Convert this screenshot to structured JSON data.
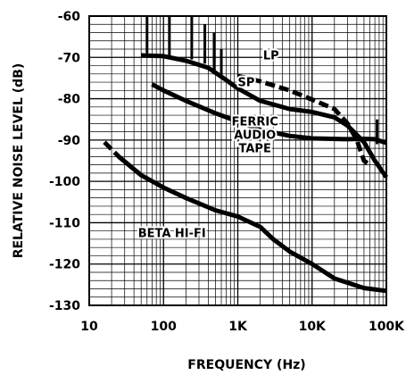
{
  "chart_data": {
    "type": "line",
    "xlabel": "FREQUENCY (Hz)",
    "ylabel": "RELATIVE NOISE LEVEL (dB)",
    "xscale": "log",
    "xlim": [
      10,
      100000
    ],
    "ylim": [
      -130,
      -60
    ],
    "grid": true,
    "x_ticks": [
      {
        "value": 10,
        "label": "10"
      },
      {
        "value": 100,
        "label": "100"
      },
      {
        "value": 1000,
        "label": "1K"
      },
      {
        "value": 10000,
        "label": "10K"
      },
      {
        "value": 100000,
        "label": "100K"
      }
    ],
    "y_ticks": [
      {
        "value": -60,
        "label": "-60"
      },
      {
        "value": -70,
        "label": "-70"
      },
      {
        "value": -80,
        "label": "-80"
      },
      {
        "value": -90,
        "label": "-90"
      },
      {
        "value": -100,
        "label": "-100"
      },
      {
        "value": -110,
        "label": "-110"
      },
      {
        "value": -120,
        "label": "-120"
      },
      {
        "value": -130,
        "label": "-130"
      }
    ],
    "series": [
      {
        "name": "SP",
        "style": "solid",
        "points": [
          [
            50,
            -69.5
          ],
          [
            100,
            -69.7
          ],
          [
            200,
            -70.8
          ],
          [
            400,
            -72.5
          ],
          [
            700,
            -75.5
          ],
          [
            1000,
            -77.5
          ],
          [
            2000,
            -80.5
          ],
          [
            5000,
            -82.5
          ],
          [
            10000,
            -83.2
          ],
          [
            20000,
            -84.5
          ],
          [
            30000,
            -86.5
          ],
          [
            50000,
            -90.5
          ],
          [
            70000,
            -95
          ],
          [
            100000,
            -99
          ]
        ],
        "label": {
          "text": "SP",
          "x": 1300,
          "y": -77
        }
      },
      {
        "name": "LP",
        "style": "dashed",
        "points": [
          [
            1000,
            -74.5
          ],
          [
            2000,
            -75.8
          ],
          [
            5000,
            -78
          ],
          [
            10000,
            -80.2
          ],
          [
            20000,
            -82.5
          ],
          [
            30000,
            -86
          ],
          [
            40000,
            -90
          ],
          [
            50000,
            -95
          ],
          [
            60000,
            -96
          ]
        ],
        "label": {
          "text": "LP",
          "x": 2800,
          "y": -70.5
        }
      },
      {
        "name": "FERRIC AUDIO TAPE",
        "style": "solid",
        "points": [
          [
            70,
            -76.5
          ],
          [
            100,
            -78
          ],
          [
            200,
            -80.5
          ],
          [
            500,
            -83.5
          ],
          [
            1000,
            -85.5
          ],
          [
            2000,
            -87.5
          ],
          [
            5000,
            -89
          ],
          [
            10000,
            -89.6
          ],
          [
            30000,
            -89.8
          ],
          [
            50000,
            -89.7
          ],
          [
            70000,
            -89.8
          ],
          [
            100000,
            -90.7
          ]
        ],
        "label": {
          "lines": [
            "FERRIC",
            "AUDIO",
            "TAPE"
          ],
          "x": 1700,
          "y": -86.5
        }
      },
      {
        "name": "BETA HI-FI",
        "style": "solid",
        "points": [
          [
            16,
            -90.5
          ],
          [
            25,
            -94
          ],
          [
            50,
            -98.5
          ],
          [
            100,
            -101.5
          ],
          [
            200,
            -104
          ],
          [
            500,
            -107
          ],
          [
            1000,
            -108.5
          ],
          [
            2000,
            -111
          ],
          [
            3000,
            -114
          ],
          [
            5000,
            -117
          ],
          [
            10000,
            -120
          ],
          [
            20000,
            -123.5
          ],
          [
            50000,
            -125.8
          ],
          [
            100000,
            -126.5
          ]
        ],
        "dashed_until": 30,
        "label": {
          "text": "BETA HI-FI",
          "x": 130,
          "y": -113.5
        }
      }
    ],
    "spikes": [
      {
        "x": 60,
        "from": -60,
        "to": -69
      },
      {
        "x": 120,
        "from": -60,
        "to": -69.5
      },
      {
        "x": 240,
        "from": -60,
        "to": -70.5
      },
      {
        "x": 360,
        "from": -62,
        "to": -71.5
      },
      {
        "x": 480,
        "from": -64,
        "to": -73
      },
      {
        "x": 600,
        "from": -68,
        "to": -74.5
      },
      {
        "x": 75000,
        "from": -85,
        "to": -91
      }
    ]
  }
}
